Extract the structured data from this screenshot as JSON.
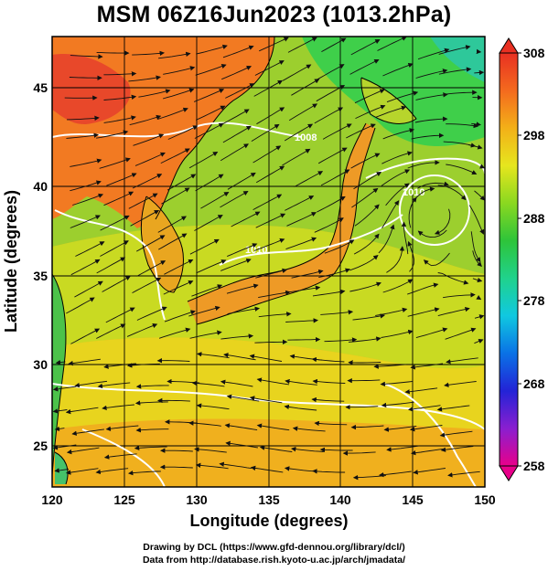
{
  "title": "MSM 06Z16Jun2023 (1013.2hPa)",
  "xlabel": "Longitude (degrees)",
  "ylabel": "Latitude  (degrees)",
  "credits": {
    "line1": "Drawing by DCL (https://www.gfd-dennou.org/library/dcl/)",
    "line2": "Data from http://database.rish.kyoto-u.ac.jp/arch/jmadata/"
  },
  "map": {
    "lon_range": [
      120,
      150
    ],
    "lat_range": [
      22.5,
      47.5
    ],
    "lon_ticks": [
      "120",
      "125",
      "130",
      "135",
      "140",
      "145",
      "150"
    ],
    "lat_ticks": [
      "25",
      "30",
      "35",
      "40",
      "45"
    ],
    "grid": true,
    "fields": [
      "temperature shading",
      "wind streamlines",
      "pressure contours",
      "coastlines"
    ]
  },
  "colorbar": {
    "ticks": [
      "308",
      "298",
      "288",
      "278",
      "268",
      "258"
    ],
    "range": [
      258,
      308
    ],
    "colors": [
      "#e8008a",
      "#8a1fd0",
      "#2323d6",
      "#0a72e6",
      "#10c8e0",
      "#20d28c",
      "#2ec43a",
      "#8ad820",
      "#e6e61e",
      "#f3b018",
      "#f46a1e",
      "#e83022"
    ]
  },
  "contour_labels": [
    {
      "text": "1010",
      "lon": 143.2,
      "lat": 39.6
    },
    {
      "text": "1008",
      "lon": 137.7,
      "lat": 41.8
    },
    {
      "text": "1010",
      "lon": 134.5,
      "lat": 35.9
    }
  ]
}
